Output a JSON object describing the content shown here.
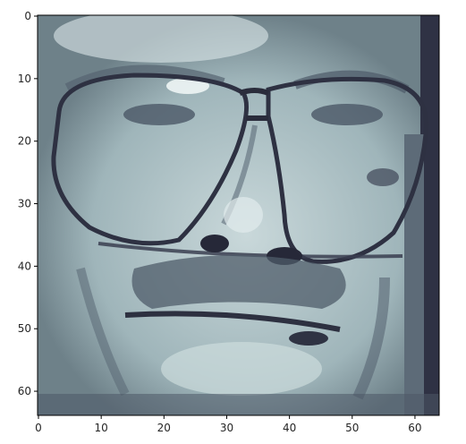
{
  "chart_data": {
    "type": "heatmap",
    "title": "",
    "xlabel": "",
    "ylabel": "",
    "image_size": [
      64,
      64
    ],
    "xlim": [
      0,
      63
    ],
    "ylim": [
      63,
      0
    ],
    "x_ticks": [
      0,
      10,
      20,
      30,
      40,
      50,
      60
    ],
    "y_ticks": [
      0,
      10,
      20,
      30,
      40,
      50,
      60
    ],
    "colormap": "bone",
    "colors": {
      "dark": "#3a3d52",
      "mid": "#86a0a8",
      "light": "#e4eeef"
    },
    "grid": false,
    "legend": "none"
  }
}
